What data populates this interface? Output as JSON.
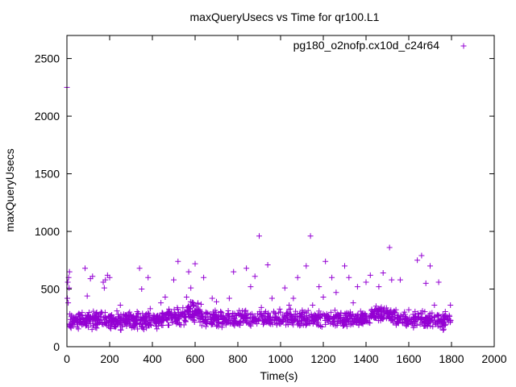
{
  "chart_data": {
    "type": "scatter",
    "title": "maxQueryUsecs vs Time for qr100.L1",
    "xlabel": "Time(s)",
    "ylabel": "maxQueryUsecs",
    "xlim": [
      0,
      2000
    ],
    "ylim": [
      0,
      2700
    ],
    "x_ticks": [
      "0",
      "200",
      "400",
      "600",
      "800",
      "1000",
      "1200",
      "1400",
      "1600",
      "1800",
      "2000"
    ],
    "y_ticks": [
      "0",
      "500",
      "1000",
      "1500",
      "2000",
      "2500"
    ],
    "grid": false,
    "legend_position": "top-right",
    "marker": "plus",
    "colors": {
      "series": "#9400d3",
      "axis": "#000000"
    },
    "series": [
      {
        "name": "pg180_o2nofp.cx10d_c24r64",
        "points": [
          [
            0,
            2250
          ],
          [
            2,
            420
          ],
          [
            4,
            560
          ],
          [
            6,
            380
          ],
          [
            8,
            600
          ],
          [
            10,
            510
          ],
          [
            12,
            650
          ],
          [
            16,
            170
          ],
          [
            20,
            260
          ],
          [
            25,
            200
          ],
          [
            30,
            180
          ],
          [
            40,
            230
          ],
          [
            50,
            210
          ],
          [
            60,
            280
          ],
          [
            70,
            190
          ],
          [
            80,
            220
          ],
          [
            85,
            680
          ],
          [
            90,
            250
          ],
          [
            95,
            440
          ],
          [
            100,
            170
          ],
          [
            110,
            590
          ],
          [
            120,
            610
          ],
          [
            130,
            260
          ],
          [
            140,
            200
          ],
          [
            150,
            230
          ],
          [
            160,
            300
          ],
          [
            170,
            560
          ],
          [
            175,
            510
          ],
          [
            180,
            580
          ],
          [
            190,
            620
          ],
          [
            200,
            600
          ],
          [
            210,
            210
          ],
          [
            220,
            250
          ],
          [
            240,
            280
          ],
          [
            250,
            360
          ],
          [
            260,
            190
          ],
          [
            280,
            230
          ],
          [
            300,
            270
          ],
          [
            320,
            210
          ],
          [
            340,
            680
          ],
          [
            350,
            500
          ],
          [
            360,
            250
          ],
          [
            380,
            600
          ],
          [
            390,
            330
          ],
          [
            400,
            240
          ],
          [
            420,
            200
          ],
          [
            440,
            380
          ],
          [
            460,
            430
          ],
          [
            480,
            280
          ],
          [
            500,
            580
          ],
          [
            520,
            740
          ],
          [
            540,
            280
          ],
          [
            560,
            430
          ],
          [
            570,
            650
          ],
          [
            580,
            510
          ],
          [
            590,
            380
          ],
          [
            600,
            720
          ],
          [
            620,
            300
          ],
          [
            640,
            600
          ],
          [
            660,
            260
          ],
          [
            680,
            420
          ],
          [
            700,
            390
          ],
          [
            720,
            300
          ],
          [
            740,
            240
          ],
          [
            760,
            420
          ],
          [
            780,
            650
          ],
          [
            800,
            290
          ],
          [
            820,
            280
          ],
          [
            840,
            680
          ],
          [
            860,
            520
          ],
          [
            880,
            610
          ],
          [
            900,
            960
          ],
          [
            910,
            340
          ],
          [
            920,
            270
          ],
          [
            940,
            710
          ],
          [
            960,
            420
          ],
          [
            980,
            260
          ],
          [
            1000,
            300
          ],
          [
            1020,
            510
          ],
          [
            1040,
            360
          ],
          [
            1060,
            420
          ],
          [
            1080,
            600
          ],
          [
            1100,
            280
          ],
          [
            1120,
            700
          ],
          [
            1140,
            960
          ],
          [
            1150,
            360
          ],
          [
            1160,
            280
          ],
          [
            1180,
            520
          ],
          [
            1200,
            430
          ],
          [
            1210,
            740
          ],
          [
            1220,
            270
          ],
          [
            1240,
            600
          ],
          [
            1260,
            470
          ],
          [
            1280,
            240
          ],
          [
            1300,
            700
          ],
          [
            1320,
            600
          ],
          [
            1340,
            380
          ],
          [
            1360,
            520
          ],
          [
            1380,
            280
          ],
          [
            1400,
            560
          ],
          [
            1420,
            620
          ],
          [
            1440,
            300
          ],
          [
            1460,
            520
          ],
          [
            1480,
            640
          ],
          [
            1500,
            280
          ],
          [
            1510,
            860
          ],
          [
            1520,
            580
          ],
          [
            1540,
            320
          ],
          [
            1560,
            580
          ],
          [
            1580,
            300
          ],
          [
            1600,
            320
          ],
          [
            1620,
            280
          ],
          [
            1640,
            750
          ],
          [
            1660,
            790
          ],
          [
            1680,
            550
          ],
          [
            1700,
            700
          ],
          [
            1720,
            360
          ],
          [
            1740,
            560
          ],
          [
            1760,
            280
          ],
          [
            1780,
            260
          ],
          [
            1795,
            360
          ]
        ],
        "bands": [
          {
            "x_range": [
              10,
              460
            ],
            "y_range": [
              130,
              330
            ],
            "count": 380
          },
          {
            "x_range": [
              460,
              560
            ],
            "y_range": [
              160,
              360
            ],
            "count": 80
          },
          {
            "x_range": [
              560,
              630
            ],
            "y_range": [
              180,
              420
            ],
            "count": 70
          },
          {
            "x_range": [
              630,
              1420
            ],
            "y_range": [
              140,
              340
            ],
            "count": 560
          },
          {
            "x_range": [
              1420,
              1540
            ],
            "y_range": [
              180,
              380
            ],
            "count": 100
          },
          {
            "x_range": [
              1540,
              1800
            ],
            "y_range": [
              130,
              330
            ],
            "count": 180
          }
        ]
      }
    ]
  }
}
